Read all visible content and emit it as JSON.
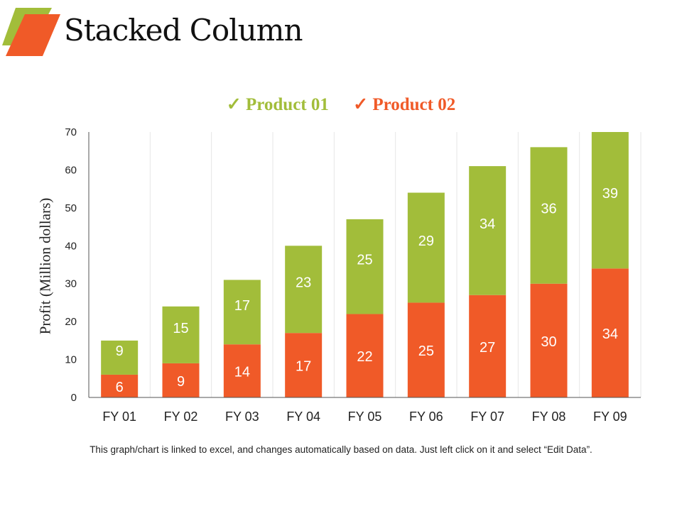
{
  "title": "Stacked Column",
  "colors": {
    "product01": "#a2bd3a",
    "product02": "#f05a28"
  },
  "footnote": "This graph/chart is linked to excel, and changes automatically based on data. Just left click on it and select “Edit Data”.",
  "chart_data": {
    "type": "bar",
    "stacked": true,
    "title": "Stacked Column",
    "ylabel": "Profit  (Million dollars)",
    "xlabel": "",
    "ylim": [
      0,
      70
    ],
    "yticks": [
      0,
      10,
      20,
      30,
      40,
      50,
      60,
      70
    ],
    "grid": "vertical",
    "legend_placement": "top",
    "categories": [
      "FY 01",
      "FY 02",
      "FY 03",
      "FY 04",
      "FY 05",
      "FY 06",
      "FY 07",
      "FY 08",
      "FY 09"
    ],
    "series": [
      {
        "name": "Product 02",
        "color": "#f05a28",
        "values": [
          6,
          9,
          14,
          17,
          22,
          25,
          27,
          30,
          34
        ]
      },
      {
        "name": "Product 01",
        "color": "#a2bd3a",
        "values": [
          9,
          15,
          17,
          23,
          25,
          29,
          34,
          36,
          39
        ]
      }
    ]
  }
}
